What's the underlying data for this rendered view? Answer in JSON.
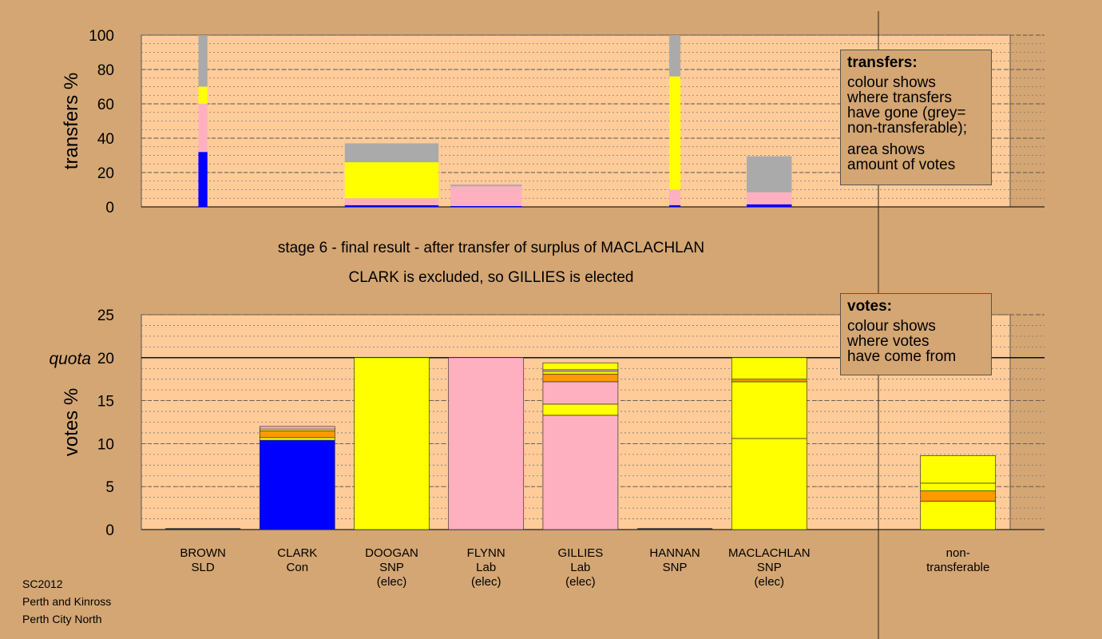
{
  "caption": {
    "line1": "stage 6 - final result - after transfer of surplus of MACLACHLAN",
    "line2": "CLARK is excluded, so GILLIES is elected"
  },
  "legends": {
    "transfers": {
      "title": "transfers:",
      "lines": [
        "colour shows",
        "where transfers",
        "have gone (grey=",
        "non-transferable);"
      ],
      "lines2": [
        "area shows",
        "amount of votes"
      ]
    },
    "votes": {
      "title": "votes:",
      "lines": [
        "colour shows",
        "where votes",
        "have come from"
      ]
    }
  },
  "footer": [
    "SC2012",
    "Perth and Kinross",
    "Perth City North"
  ],
  "colors": {
    "background": "#d4a673",
    "plot": "#ffcc99",
    "SLD": "#ff9900",
    "Con": "#0000ff",
    "SNP": "#ffff00",
    "Lab": "#ffb0c0",
    "nontransferable": "#aaaaaa"
  },
  "chart_data": [
    {
      "type": "bar",
      "stacked": true,
      "ylabel": "transfers %",
      "ylim": [
        0,
        100
      ],
      "yticks": [
        0,
        20,
        40,
        60,
        80,
        100
      ],
      "transfers": [
        {
          "slot": 0,
          "width_fraction": 0.12,
          "segments": [
            {
              "color": "Con",
              "value": 32
            },
            {
              "color": "Lab",
              "value": 28
            },
            {
              "color": "SNP",
              "value": 10
            },
            {
              "color": "nontransferable",
              "value": 30
            }
          ]
        },
        {
          "slot": 2,
          "width_fraction": 1.25,
          "segments": [
            {
              "color": "Con",
              "value": 1
            },
            {
              "color": "Lab",
              "value": 4
            },
            {
              "color": "SNP",
              "value": 21
            },
            {
              "color": "nontransferable",
              "value": 11
            }
          ]
        },
        {
          "slot": 3,
          "width_fraction": 0.95,
          "segments": [
            {
              "color": "Con",
              "value": 0.5
            },
            {
              "color": "Lab",
              "value": 11.5
            },
            {
              "color": "nontransferable",
              "value": 1
            }
          ]
        },
        {
          "slot": 5,
          "width_fraction": 0.15,
          "segments": [
            {
              "color": "Con",
              "value": 1
            },
            {
              "color": "Lab",
              "value": 9
            },
            {
              "color": "SNP",
              "value": 66
            },
            {
              "color": "nontransferable",
              "value": 24
            }
          ]
        },
        {
          "slot": 6,
          "width_fraction": 0.6,
          "segments": [
            {
              "color": "Con",
              "value": 1.5
            },
            {
              "color": "Lab",
              "value": 7
            },
            {
              "color": "nontransferable",
              "value": 21
            }
          ]
        }
      ]
    },
    {
      "type": "bar",
      "stacked": true,
      "ylabel": "votes %",
      "ylim": [
        0,
        25
      ],
      "yticks": [
        0,
        5,
        10,
        15,
        20,
        25
      ],
      "quota": 20,
      "quota_label": "quota",
      "categories": [
        {
          "label": [
            "BROWN",
            "SLD"
          ],
          "segments": []
        },
        {
          "label": [
            "CLARK",
            "Con"
          ],
          "segments": [
            {
              "color": "Con",
              "value": 10.4
            },
            {
              "color": "SNP",
              "value": 0.3
            },
            {
              "color": "SLD",
              "value": 0.8
            },
            {
              "color": "SNP",
              "value": 0.2
            },
            {
              "color": "Lab",
              "value": 0.3
            }
          ]
        },
        {
          "label": [
            "DOOGAN",
            "SNP",
            "(elec)"
          ],
          "segments": [
            {
              "color": "SNP",
              "value": 20
            }
          ]
        },
        {
          "label": [
            "FLYNN",
            "Lab",
            "(elec)"
          ],
          "segments": [
            {
              "color": "Lab",
              "value": 20
            }
          ]
        },
        {
          "label": [
            "GILLIES",
            "Lab",
            "(elec)"
          ],
          "segments": [
            {
              "color": "Lab",
              "value": 13.3
            },
            {
              "color": "SNP",
              "value": 1.3
            },
            {
              "color": "Lab",
              "value": 2.6
            },
            {
              "color": "SLD",
              "value": 0.9
            },
            {
              "color": "SNP",
              "value": 0.3
            },
            {
              "color": "Lab",
              "value": 0.2
            },
            {
              "color": "SNP",
              "value": 0.8
            }
          ]
        },
        {
          "label": [
            "HANNAN",
            "SNP"
          ],
          "segments": []
        },
        {
          "label": [
            "MACLACHLAN",
            "SNP",
            "(elec)"
          ],
          "segments": [
            {
              "color": "SNP",
              "value": 10.6
            },
            {
              "color": "SNP",
              "value": 6.6
            },
            {
              "color": "SLD",
              "value": 0.3
            },
            {
              "color": "SNP",
              "value": 2.5
            }
          ]
        },
        {
          "label": [
            "non-",
            "transferable"
          ],
          "segments": [
            {
              "color": "SNP",
              "value": 3.3
            },
            {
              "color": "SLD",
              "value": 1.2
            },
            {
              "color": "SNP",
              "value": 0.9
            },
            {
              "color": "SNP",
              "value": 3.2
            }
          ]
        }
      ]
    }
  ]
}
